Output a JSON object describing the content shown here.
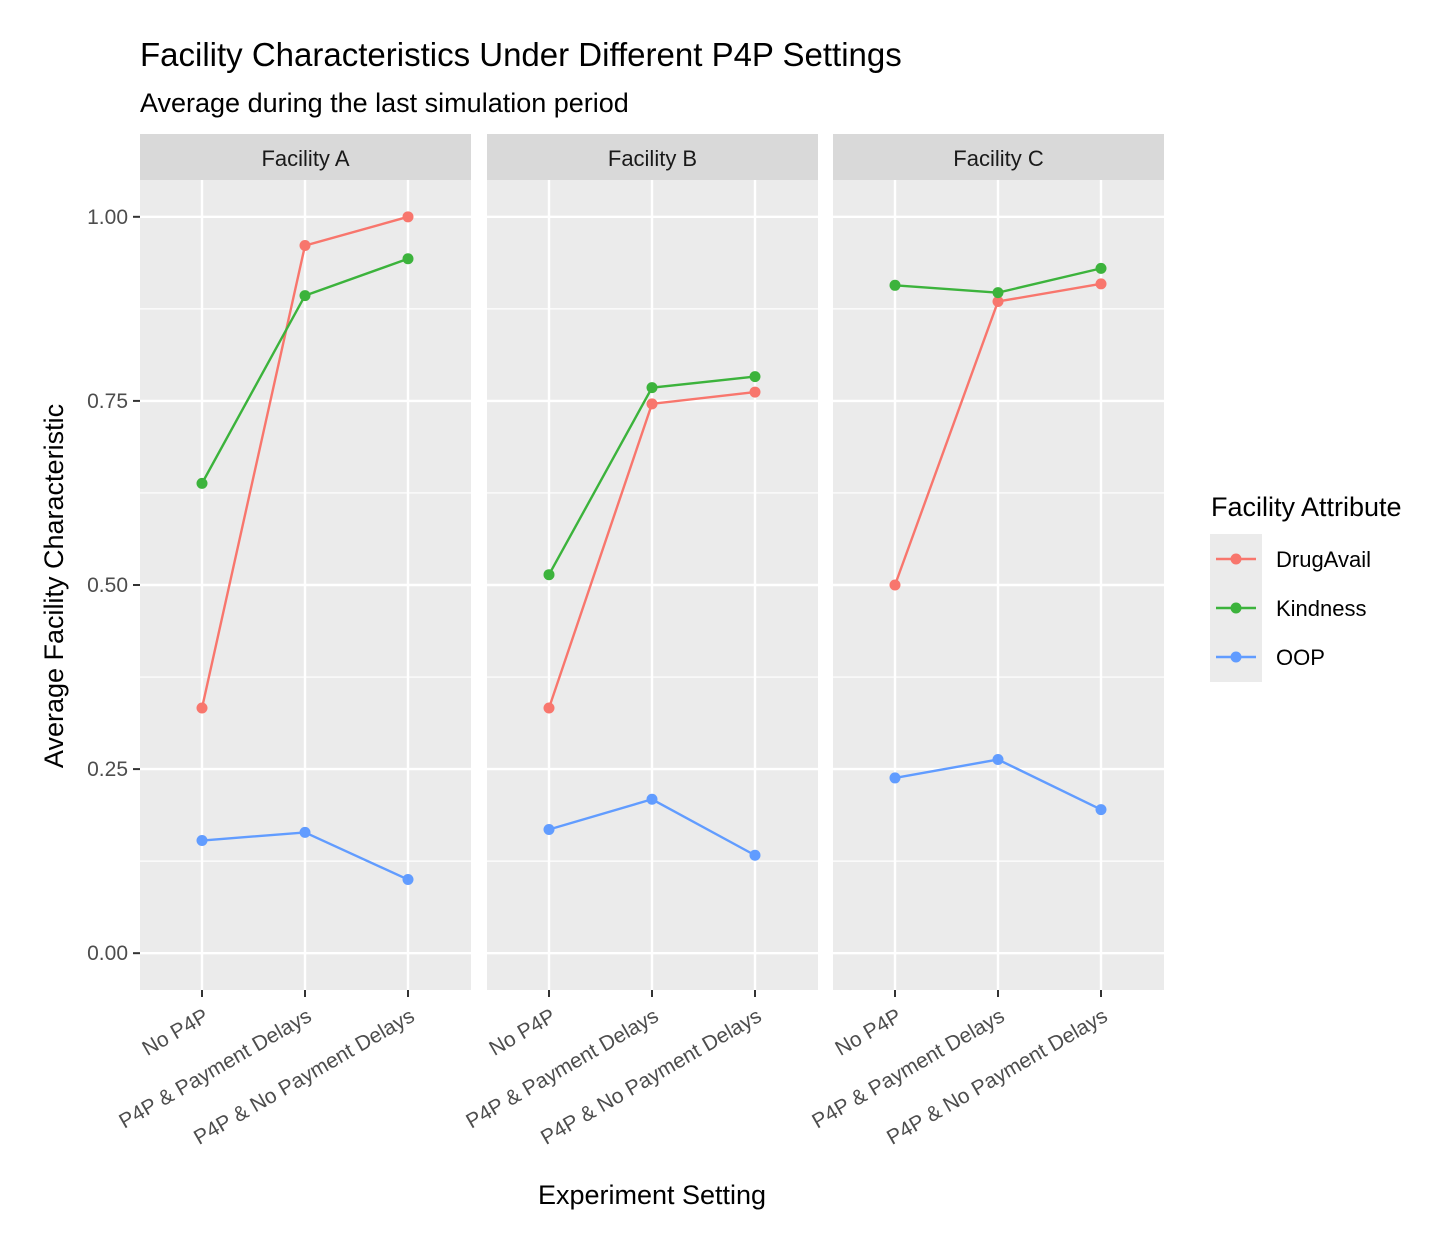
{
  "chart_data": {
    "type": "line",
    "title": "Facility Characteristics Under Different P4P Settings",
    "subtitle": "Average during the last simulation period",
    "xlabel": "Experiment Setting",
    "ylabel": "Average Facility Characteristic",
    "ylim": [
      -0.05,
      1.05
    ],
    "yticks": [
      0.0,
      0.25,
      0.5,
      0.75,
      1.0
    ],
    "ytick_labels": [
      "0.00",
      "0.25",
      "0.50",
      "0.75",
      "1.00"
    ],
    "categories": [
      "No P4P",
      "P4P & Payment Delays",
      "P4P & No Payment Delays"
    ],
    "legend": {
      "title": "Facility Attribute",
      "placement": "right"
    },
    "series_colors": {
      "DrugAvail": "#F8766D",
      "Kindness": "#3CB33C",
      "OOP": "#619CFF"
    },
    "panels": [
      {
        "label": "Facility A",
        "series": [
          {
            "name": "DrugAvail",
            "values": [
              0.333,
              0.961,
              1.0
            ]
          },
          {
            "name": "Kindness",
            "values": [
              0.638,
              0.893,
              0.943
            ]
          },
          {
            "name": "OOP",
            "values": [
              0.153,
              0.164,
              0.1
            ]
          }
        ]
      },
      {
        "label": "Facility B",
        "series": [
          {
            "name": "DrugAvail",
            "values": [
              0.333,
              0.746,
              0.762
            ]
          },
          {
            "name": "Kindness",
            "values": [
              0.514,
              0.768,
              0.783
            ]
          },
          {
            "name": "OOP",
            "values": [
              0.168,
              0.209,
              0.133
            ]
          }
        ]
      },
      {
        "label": "Facility C",
        "series": [
          {
            "name": "DrugAvail",
            "values": [
              0.5,
              0.885,
              0.909
            ]
          },
          {
            "name": "Kindness",
            "values": [
              0.907,
              0.897,
              0.93
            ]
          },
          {
            "name": "OOP",
            "values": [
              0.238,
              0.263,
              0.195
            ]
          }
        ]
      }
    ]
  }
}
